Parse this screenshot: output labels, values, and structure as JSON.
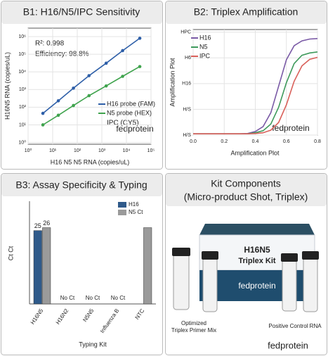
{
  "chart_data": [
    {
      "type": "line",
      "title": "B1: H16/N5/IPC Sensitivity",
      "x_label": "H16 N5 N5 RNA (copies/uL)",
      "y_label": "H16N5 RNA (copies/uL)",
      "xscale": "log",
      "yscale": "log",
      "grid": true,
      "markers": true,
      "x": [
        4,
        17,
        70,
        300,
        1500,
        7000,
        35000
      ],
      "series": [
        {
          "name": "H16 probe (FAM)",
          "color": "#2e5fa8",
          "values": [
            45,
            230,
            1200,
            6100,
            31000,
            160000,
            800000
          ]
        },
        {
          "name": "N5 probe (HEX)",
          "color": "#3fa34d",
          "values": [
            10,
            35,
            125,
            450,
            1600,
            5600,
            20000
          ]
        }
      ],
      "annotations": [
        "R²: 0.998",
        "Efficiency: 98.8%",
        "IPC (CY5)"
      ],
      "watermark": "fedprotein",
      "xlim": [
        1,
        100000
      ],
      "xticks": [
        {
          "value": 1,
          "label": "10⁰"
        },
        {
          "value": 10,
          "label": "10¹"
        },
        {
          "value": 100,
          "label": "10²"
        },
        {
          "value": 1000,
          "label": "10³"
        },
        {
          "value": 10000,
          "label": "10⁴"
        },
        {
          "value": 100000,
          "label": "10⁵"
        }
      ],
      "ylim": [
        0.8,
        3000000
      ],
      "yticks": [
        {
          "value": 1,
          "label": "10⁰"
        },
        {
          "value": 10,
          "label": "10¹"
        },
        {
          "value": 100,
          "label": "10²"
        },
        {
          "value": 1000,
          "label": "10³"
        },
        {
          "value": 10000,
          "label": "10⁴"
        },
        {
          "value": 100000,
          "label": "10⁵"
        },
        {
          "value": 1000000,
          "label": "10⁶"
        }
      ]
    },
    {
      "type": "line",
      "title": "B2: Triplex Amplification",
      "x_label": "Amplification Plot",
      "y_label": "Amplification Plot",
      "grid": true,
      "x": [
        0,
        0.05,
        0.1,
        0.15,
        0.2,
        0.25,
        0.3,
        0.35,
        0.4,
        0.45,
        0.5,
        0.55,
        0.6,
        0.65,
        0.7,
        0.75,
        0.8
      ],
      "series": [
        {
          "name": "H16",
          "color": "#7a5aa6",
          "values": [
            0.05,
            0.05,
            0.05,
            0.05,
            0.05,
            0.05,
            0.05,
            0.06,
            0.14,
            0.33,
            0.87,
            1.9,
            2.93,
            3.47,
            3.66,
            3.73,
            3.75
          ]
        },
        {
          "name": "N5",
          "color": "#3e9a5c",
          "values": [
            0.05,
            0.05,
            0.05,
            0.05,
            0.05,
            0.05,
            0.05,
            0.05,
            0.09,
            0.17,
            0.43,
            1.08,
            2.04,
            2.78,
            3.1,
            3.19,
            3.23
          ]
        },
        {
          "name": "IPC",
          "color": "#d9605a",
          "values": [
            0.05,
            0.05,
            0.05,
            0.05,
            0.05,
            0.05,
            0.05,
            0.05,
            0.06,
            0.09,
            0.19,
            0.49,
            1.18,
            2.09,
            2.69,
            2.94,
            3.02
          ]
        }
      ],
      "watermark": "fedprotein",
      "xlim": [
        0,
        0.8
      ],
      "xticks": [
        {
          "value": 0,
          "label": "0.0"
        },
        0.2,
        0.4,
        0.6,
        0.8
      ],
      "ylim": [
        0,
        4.1
      ],
      "yticks": [
        {
          "value": 0,
          "label": "H/S"
        },
        {
          "value": 1,
          "label": "H/S"
        },
        {
          "value": 2,
          "label": "H16"
        },
        {
          "value": 3,
          "label": "H6"
        },
        {
          "value": 4,
          "label": "HPC"
        }
      ]
    },
    {
      "type": "bar",
      "title": "B3: Assay Specificity & Typing",
      "x_label": "Typing Kit",
      "y_label": "Ct Ct",
      "categories": [
        "H16N5",
        "H16N2",
        "N5N5",
        "Influenza B",
        "NTC"
      ],
      "series": [
        {
          "name": "H16",
          "color": "#2f5a8a",
          "values": [
            25,
            null,
            null,
            null,
            null
          ],
          "value_labels": [
            "25",
            "No Ct",
            "No Ct",
            "No Ct",
            null
          ]
        },
        {
          "name": "N5 Ct",
          "color": "#9a9a9a",
          "values": [
            26,
            null,
            null,
            null,
            26
          ],
          "value_labels": [
            "26",
            null,
            null,
            null,
            null
          ]
        }
      ],
      "ylim": [
        0,
        35
      ]
    }
  ],
  "kit_panel": {
    "title": [
      "Kit Components",
      "(Micro-product Shot, Triplex)"
    ],
    "box_title": "H16N5",
    "box_subtitle": "Triplex Kit",
    "box_brand": "fedprotein",
    "left_caption": [
      "Optimized",
      "Triplex Primer Mix"
    ],
    "right_caption": "Positive Control RNA",
    "footer": "fedprotein"
  }
}
